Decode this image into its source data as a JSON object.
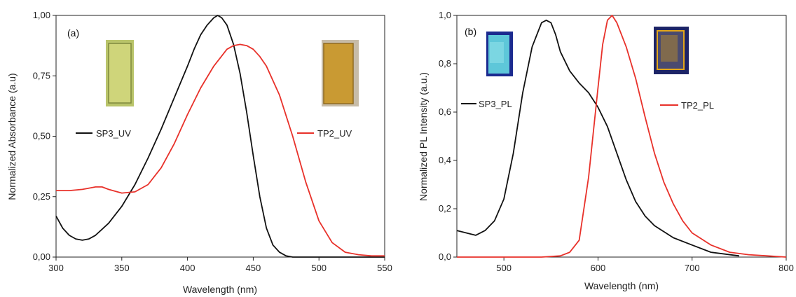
{
  "chart_data": [
    {
      "type": "line",
      "panel_label": "(a)",
      "xlabel": "Wavelength (nm)",
      "ylabel": "Normalized Absorbance (a.u)",
      "xlim": [
        300,
        550
      ],
      "ylim": [
        0,
        1
      ],
      "x_ticks": [
        "300",
        "350",
        "400",
        "450",
        "500",
        "550"
      ],
      "y_ticks": [
        "0,00",
        "0,25",
        "0,50",
        "0,75",
        "1,00"
      ],
      "grid": false,
      "series": [
        {
          "name": "SP3_UV",
          "color": "#111111",
          "x": [
            300,
            305,
            310,
            315,
            320,
            325,
            330,
            340,
            350,
            360,
            370,
            380,
            390,
            400,
            405,
            410,
            415,
            420,
            423,
            426,
            430,
            435,
            440,
            445,
            450,
            455,
            460,
            465,
            470,
            475,
            480,
            490,
            500,
            550
          ],
          "y": [
            0.17,
            0.12,
            0.09,
            0.075,
            0.07,
            0.075,
            0.09,
            0.14,
            0.21,
            0.3,
            0.41,
            0.53,
            0.66,
            0.79,
            0.86,
            0.92,
            0.96,
            0.99,
            1.0,
            0.99,
            0.96,
            0.88,
            0.76,
            0.6,
            0.42,
            0.25,
            0.12,
            0.05,
            0.02,
            0.005,
            0,
            0,
            0,
            0
          ]
        },
        {
          "name": "TP2_UV",
          "color": "#e8312a",
          "x": [
            300,
            310,
            320,
            330,
            335,
            340,
            350,
            360,
            370,
            380,
            390,
            400,
            410,
            420,
            430,
            435,
            440,
            445,
            450,
            455,
            460,
            470,
            480,
            490,
            500,
            510,
            520,
            530,
            540,
            550
          ],
          "y": [
            0.275,
            0.275,
            0.28,
            0.29,
            0.29,
            0.28,
            0.265,
            0.27,
            0.3,
            0.37,
            0.47,
            0.59,
            0.7,
            0.79,
            0.86,
            0.875,
            0.88,
            0.875,
            0.86,
            0.83,
            0.79,
            0.67,
            0.5,
            0.31,
            0.15,
            0.06,
            0.02,
            0.01,
            0.005,
            0.005
          ]
        }
      ],
      "insets": [
        {
          "name": "SP3 film photo",
          "color": "#c8cf5a",
          "edge": "#8a8a3a"
        },
        {
          "name": "TP2 film photo",
          "color": "#c99a33",
          "edge": "#8f6a1f"
        }
      ]
    },
    {
      "type": "line",
      "panel_label": "(b)",
      "xlabel": "Wavelength (nm)",
      "ylabel": "Normalized PL Intensity (a.u.)",
      "xlim": [
        450,
        800
      ],
      "ylim": [
        0,
        1
      ],
      "x_ticks": [
        "500",
        "600",
        "700",
        "800"
      ],
      "y_ticks": [
        "0,0",
        "0,2",
        "0,4",
        "0,6",
        "0,8",
        "1,0"
      ],
      "grid": false,
      "series": [
        {
          "name": "SP3_PL",
          "color": "#111111",
          "x": [
            450,
            460,
            470,
            480,
            490,
            500,
            510,
            520,
            530,
            540,
            545,
            550,
            555,
            560,
            570,
            580,
            590,
            600,
            610,
            620,
            630,
            640,
            650,
            660,
            680,
            700,
            720,
            750
          ],
          "y": [
            0.11,
            0.1,
            0.09,
            0.11,
            0.15,
            0.24,
            0.43,
            0.68,
            0.87,
            0.97,
            0.98,
            0.97,
            0.92,
            0.85,
            0.77,
            0.72,
            0.68,
            0.62,
            0.54,
            0.43,
            0.32,
            0.23,
            0.17,
            0.13,
            0.08,
            0.05,
            0.02,
            0.005
          ]
        },
        {
          "name": "TP2_PL",
          "color": "#e8312a",
          "x": [
            450,
            500,
            540,
            560,
            570,
            580,
            590,
            600,
            605,
            610,
            615,
            620,
            630,
            640,
            650,
            660,
            670,
            680,
            690,
            700,
            720,
            740,
            760,
            780,
            800
          ],
          "y": [
            0,
            0,
            0,
            0.005,
            0.02,
            0.07,
            0.33,
            0.7,
            0.88,
            0.98,
            1.0,
            0.97,
            0.87,
            0.74,
            0.58,
            0.43,
            0.31,
            0.22,
            0.15,
            0.1,
            0.05,
            0.02,
            0.01,
            0.005,
            0
          ]
        }
      ],
      "insets": [
        {
          "name": "SP3 film under UV photo",
          "color": "#5ec7d9",
          "edge": "#1b2a8f"
        },
        {
          "name": "TP2 film under UV photo",
          "color": "#d9a21f",
          "edge": "#1d2466"
        }
      ]
    }
  ]
}
